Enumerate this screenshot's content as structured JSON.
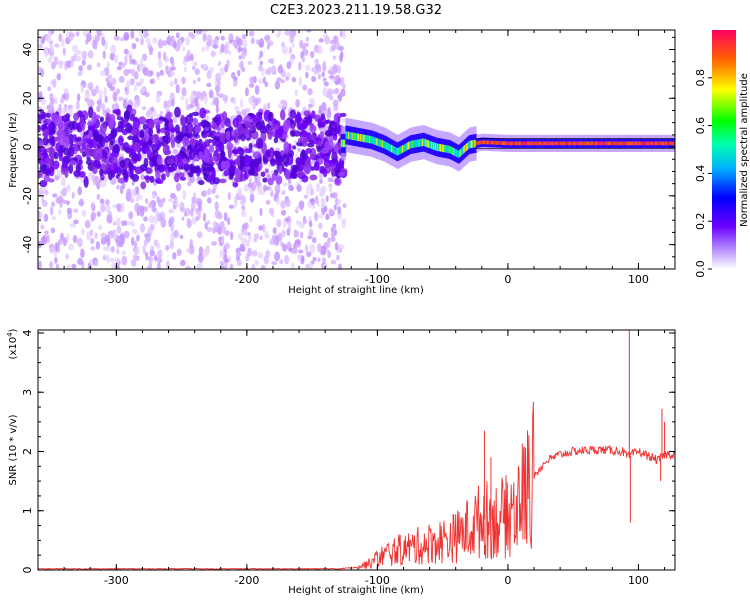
{
  "title": "C2E3.2023.211.19.58.G32",
  "chart_data": [
    {
      "type": "heatmap",
      "xlabel": "Height of straight line (km)",
      "ylabel": "Frequency (Hz)",
      "xlim": [
        -360,
        128
      ],
      "ylim": [
        -50,
        48
      ],
      "x_ticks": [
        -300,
        -200,
        -100,
        0,
        100
      ],
      "y_ticks": [
        -40,
        -20,
        0,
        20,
        40
      ],
      "colorbar": {
        "label": "Normalized spectral amplitude",
        "range": [
          0.0,
          1.0
        ],
        "ticks": [
          0.0,
          0.2,
          0.4,
          0.6,
          0.8
        ],
        "colormap": [
          "#ffffff",
          "#8a00ff",
          "#0000ff",
          "#00c8ff",
          "#00ff40",
          "#ffff00",
          "#ff6000",
          "#ff0050"
        ]
      },
      "noise_region_x": [
        -360,
        -125
      ],
      "ridge": [
        {
          "x": -125,
          "f": 5
        },
        {
          "x": -115,
          "f": 4
        },
        {
          "x": -105,
          "f": 3
        },
        {
          "x": -95,
          "f": 1
        },
        {
          "x": -85,
          "f": -2
        },
        {
          "x": -75,
          "f": 1
        },
        {
          "x": -65,
          "f": 2
        },
        {
          "x": -55,
          "f": 0
        },
        {
          "x": -45,
          "f": -1
        },
        {
          "x": -38,
          "f": -3
        },
        {
          "x": -30,
          "f": 1
        },
        {
          "x": -20,
          "f": 2
        },
        {
          "x": 0,
          "f": 1.5
        },
        {
          "x": 40,
          "f": 1.5
        },
        {
          "x": 80,
          "f": 1.5
        },
        {
          "x": 128,
          "f": 1.5
        }
      ]
    },
    {
      "type": "line",
      "xlabel": "Height of straight line (km)",
      "ylabel": "SNR (10 * v/v)",
      "y_multiplier": "(x10",
      "y_multiplier_exp": "4",
      "y_multiplier_close": ")",
      "xlim": [
        -360,
        128
      ],
      "ylim": [
        0,
        4.05
      ],
      "x_ticks": [
        -300,
        -200,
        -100,
        0,
        100
      ],
      "y_ticks": [
        0,
        1,
        2,
        3,
        4
      ],
      "color": "#ee3333",
      "series": [
        {
          "x": [
            -360,
            -130,
            -115,
            -105,
            -100,
            -90,
            -80,
            -70,
            -60,
            -50,
            -40,
            -30,
            -20,
            -10,
            0,
            10,
            20,
            30,
            40,
            50,
            60,
            70,
            80,
            88,
            92,
            95,
            100,
            105,
            110,
            115,
            118,
            121,
            128
          ],
          "values": [
            0.02,
            0.02,
            0.05,
            0.12,
            0.2,
            0.3,
            0.35,
            0.4,
            0.45,
            0.5,
            0.55,
            0.7,
            0.85,
            0.85,
            0.9,
            1.2,
            1.6,
            1.85,
            1.95,
            2.0,
            2.02,
            2.03,
            2.02,
            2.0,
            1.9,
            1.95,
            2.0,
            1.95,
            1.9,
            1.85,
            1.9,
            1.95,
            1.95
          ]
        }
      ],
      "spikes": [
        {
          "x": -18,
          "y": 2.35
        },
        {
          "x": -13,
          "y": 1.9
        },
        {
          "x": 93,
          "y": 4.05
        },
        {
          "x": 93.8,
          "y": 0.8
        },
        {
          "x": 118,
          "y": 2.72
        },
        {
          "x": 117,
          "y": 1.5
        },
        {
          "x": 120,
          "y": 2.5
        }
      ]
    }
  ]
}
